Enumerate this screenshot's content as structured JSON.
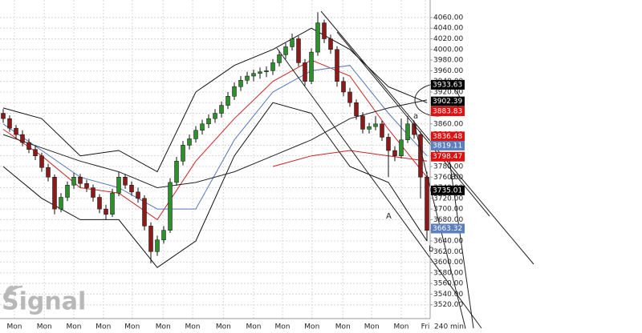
{
  "chart_data": {
    "type": "candlestick",
    "interval_label": "240 min.",
    "watermark": "Signal",
    "up_color": "#2f8f2f",
    "down_color": "#8b1a1a",
    "grid": true,
    "xlim": [
      -0.5,
      66.5
    ],
    "ylim": [
      3497,
      4093
    ],
    "yticks": [
      {
        "value": 3520,
        "label": "3520.00"
      },
      {
        "value": 3540,
        "label": "3540.00"
      },
      {
        "value": 3560,
        "label": "3560.00"
      },
      {
        "value": 3580,
        "label": "3580.00"
      },
      {
        "value": 3600,
        "label": "3600.00"
      },
      {
        "value": 3620,
        "label": "3620.00"
      },
      {
        "value": 3640,
        "label": "3640.00"
      },
      {
        "value": 3660,
        "label": "3660.00"
      },
      {
        "value": 3680,
        "label": "3680.00"
      },
      {
        "value": 3700,
        "label": "3700.00"
      },
      {
        "value": 3720,
        "label": "3720.00"
      },
      {
        "value": 3740,
        "label": "3740.00"
      },
      {
        "value": 3760,
        "label": "3760.00"
      },
      {
        "value": 3780,
        "label": "3780.00"
      },
      {
        "value": 3800,
        "label": "3800.00"
      },
      {
        "value": 3820,
        "label": "3820.00"
      },
      {
        "value": 3840,
        "label": "3840.00"
      },
      {
        "value": 3860,
        "label": "3860.00"
      },
      {
        "value": 3880,
        "label": "3880.00"
      },
      {
        "value": 3900,
        "label": "3900.00"
      },
      {
        "value": 3920,
        "label": "3920.00"
      },
      {
        "value": 3940,
        "label": "3940.00"
      },
      {
        "value": 3960,
        "label": "3960.00"
      },
      {
        "value": 3980,
        "label": "3980.00"
      },
      {
        "value": 4000,
        "label": "4000.00"
      },
      {
        "value": 4020,
        "label": "4020.00"
      },
      {
        "value": 4040,
        "label": "4040.00"
      },
      {
        "value": 4060,
        "label": "4060.00"
      }
    ],
    "xticks": [
      {
        "value": 1.75,
        "label": "Mon"
      },
      {
        "value": 6.4,
        "label": "Mon"
      },
      {
        "value": 11,
        "label": "Mon"
      },
      {
        "value": 15.6,
        "label": "Mon"
      },
      {
        "value": 20.1,
        "label": "Mon"
      },
      {
        "value": 24.9,
        "label": "Mon"
      },
      {
        "value": 29.5,
        "label": "Mon"
      },
      {
        "value": 34.3,
        "label": "Mon"
      },
      {
        "value": 39,
        "label": "Mon"
      },
      {
        "value": 43.5,
        "label": "Mon"
      },
      {
        "value": 48.1,
        "label": "Mon"
      },
      {
        "value": 52.9,
        "label": "Mon"
      },
      {
        "value": 57.4,
        "label": "Mon"
      },
      {
        "value": 62,
        "label": "Mon"
      },
      {
        "value": 65.75,
        "label": "Fri"
      }
    ],
    "candles": [
      [
        3880,
        3888,
        3862,
        3870
      ],
      [
        3870,
        3876,
        3845,
        3852
      ],
      [
        3852,
        3858,
        3832,
        3840
      ],
      [
        3840,
        3848,
        3818,
        3825
      ],
      [
        3825,
        3832,
        3805,
        3812
      ],
      [
        3812,
        3820,
        3792,
        3800
      ],
      [
        3800,
        3806,
        3770,
        3778
      ],
      [
        3778,
        3785,
        3752,
        3760
      ],
      [
        3760,
        3765,
        3690,
        3700
      ],
      [
        3700,
        3730,
        3694,
        3722
      ],
      [
        3722,
        3752,
        3715,
        3745
      ],
      [
        3745,
        3768,
        3738,
        3760
      ],
      [
        3760,
        3766,
        3740,
        3748
      ],
      [
        3748,
        3755,
        3732,
        3740
      ],
      [
        3740,
        3746,
        3714,
        3722
      ],
      [
        3722,
        3728,
        3692,
        3700
      ],
      [
        3700,
        3708,
        3680,
        3690
      ],
      [
        3690,
        3738,
        3685,
        3730
      ],
      [
        3730,
        3770,
        3724,
        3760
      ],
      [
        3760,
        3766,
        3738,
        3745
      ],
      [
        3745,
        3752,
        3725,
        3732
      ],
      [
        3732,
        3740,
        3712,
        3720
      ],
      [
        3720,
        3726,
        3660,
        3668
      ],
      [
        3668,
        3675,
        3598,
        3620
      ],
      [
        3620,
        3650,
        3612,
        3642
      ],
      [
        3642,
        3668,
        3635,
        3660
      ],
      [
        3660,
        3758,
        3655,
        3750
      ],
      [
        3750,
        3798,
        3744,
        3790
      ],
      [
        3790,
        3828,
        3782,
        3820
      ],
      [
        3820,
        3840,
        3812,
        3832
      ],
      [
        3832,
        3856,
        3825,
        3848
      ],
      [
        3848,
        3868,
        3840,
        3860
      ],
      [
        3860,
        3878,
        3852,
        3870
      ],
      [
        3870,
        3888,
        3862,
        3880
      ],
      [
        3880,
        3902,
        3872,
        3895
      ],
      [
        3895,
        3920,
        3888,
        3912
      ],
      [
        3912,
        3938,
        3905,
        3930
      ],
      [
        3930,
        3950,
        3922,
        3942
      ],
      [
        3942,
        3958,
        3935,
        3950
      ],
      [
        3950,
        3962,
        3940,
        3955
      ],
      [
        3955,
        3966,
        3945,
        3958
      ],
      [
        3958,
        3968,
        3948,
        3960
      ],
      [
        3960,
        3982,
        3952,
        3975
      ],
      [
        3975,
        3998,
        3968,
        3990
      ],
      [
        3990,
        4012,
        3982,
        4005
      ],
      [
        4005,
        4030,
        3998,
        4020
      ],
      [
        4020,
        4025,
        3968,
        3975
      ],
      [
        3975,
        3982,
        3932,
        3940
      ],
      [
        3940,
        4002,
        3935,
        3995
      ],
      [
        3995,
        4070,
        3988,
        4050
      ],
      [
        4050,
        4056,
        4012,
        4020
      ],
      [
        4020,
        4028,
        3992,
        4000
      ],
      [
        4000,
        4006,
        3930,
        3940
      ],
      [
        3940,
        3948,
        3912,
        3920
      ],
      [
        3920,
        3928,
        3892,
        3900
      ],
      [
        3900,
        3906,
        3868,
        3875
      ],
      [
        3875,
        3882,
        3842,
        3850
      ],
      [
        3850,
        3862,
        3842,
        3855
      ],
      [
        3855,
        3875,
        3848,
        3860
      ],
      [
        3860,
        3866,
        3828,
        3835
      ],
      [
        3835,
        3842,
        3760,
        3810
      ],
      [
        3810,
        3818,
        3790,
        3800
      ],
      [
        3800,
        3870,
        3795,
        3830
      ],
      [
        3830,
        3875,
        3824,
        3860
      ],
      [
        3860,
        3866,
        3832,
        3840
      ],
      [
        3840,
        3846,
        3720,
        3760
      ],
      [
        3760,
        3770,
        3640,
        3660
      ]
    ],
    "line_x": [
      0,
      6,
      12,
      18,
      24,
      30,
      36,
      42,
      48,
      54,
      60,
      66
    ],
    "series": [
      {
        "color": "#111111",
        "values": [
          3890,
          3870,
          3800,
          3810,
          3770,
          3920,
          3970,
          4000,
          4040,
          4000,
          3930,
          3900
        ]
      },
      {
        "color": "#111111",
        "values": [
          3780,
          3720,
          3680,
          3680,
          3590,
          3640,
          3800,
          3900,
          3880,
          3780,
          3750,
          3640
        ]
      },
      {
        "color": "#cc2222",
        "values": [
          3850,
          3800,
          3740,
          3730,
          3680,
          3790,
          3870,
          3940,
          3980,
          3950,
          3850,
          3760
        ]
      },
      {
        "color": "#5577bb",
        "values": [
          3860,
          3810,
          3760,
          3740,
          3700,
          3700,
          3830,
          3920,
          3960,
          3970,
          3880,
          3800
        ]
      },
      {
        "color": "#222222",
        "values": [
          3840,
          3815,
          3790,
          3770,
          3740,
          3750,
          3770,
          3800,
          3830,
          3870,
          3890,
          3905
        ]
      },
      {
        "color": "#cc2222",
        "values": [
          null,
          null,
          null,
          null,
          null,
          null,
          null,
          3780,
          3800,
          3810,
          3800,
          3790
        ]
      }
    ],
    "price_labels": [
      {
        "value": 3933.63,
        "color": "#000000"
      },
      {
        "value": 3902.39,
        "color": "#000000"
      },
      {
        "value": 3883.83,
        "color": "#e01010"
      },
      {
        "value": 3836.48,
        "color": "#e01010"
      },
      {
        "value": 3819.11,
        "color": "#5b7fbf"
      },
      {
        "value": 3798.47,
        "color": "#e01010"
      },
      {
        "value": 3735.01,
        "color": "#000000"
      },
      {
        "value": 3663.32,
        "color": "#5b7fbf"
      }
    ],
    "annotations": [
      "A",
      "B",
      "a",
      "b"
    ]
  }
}
